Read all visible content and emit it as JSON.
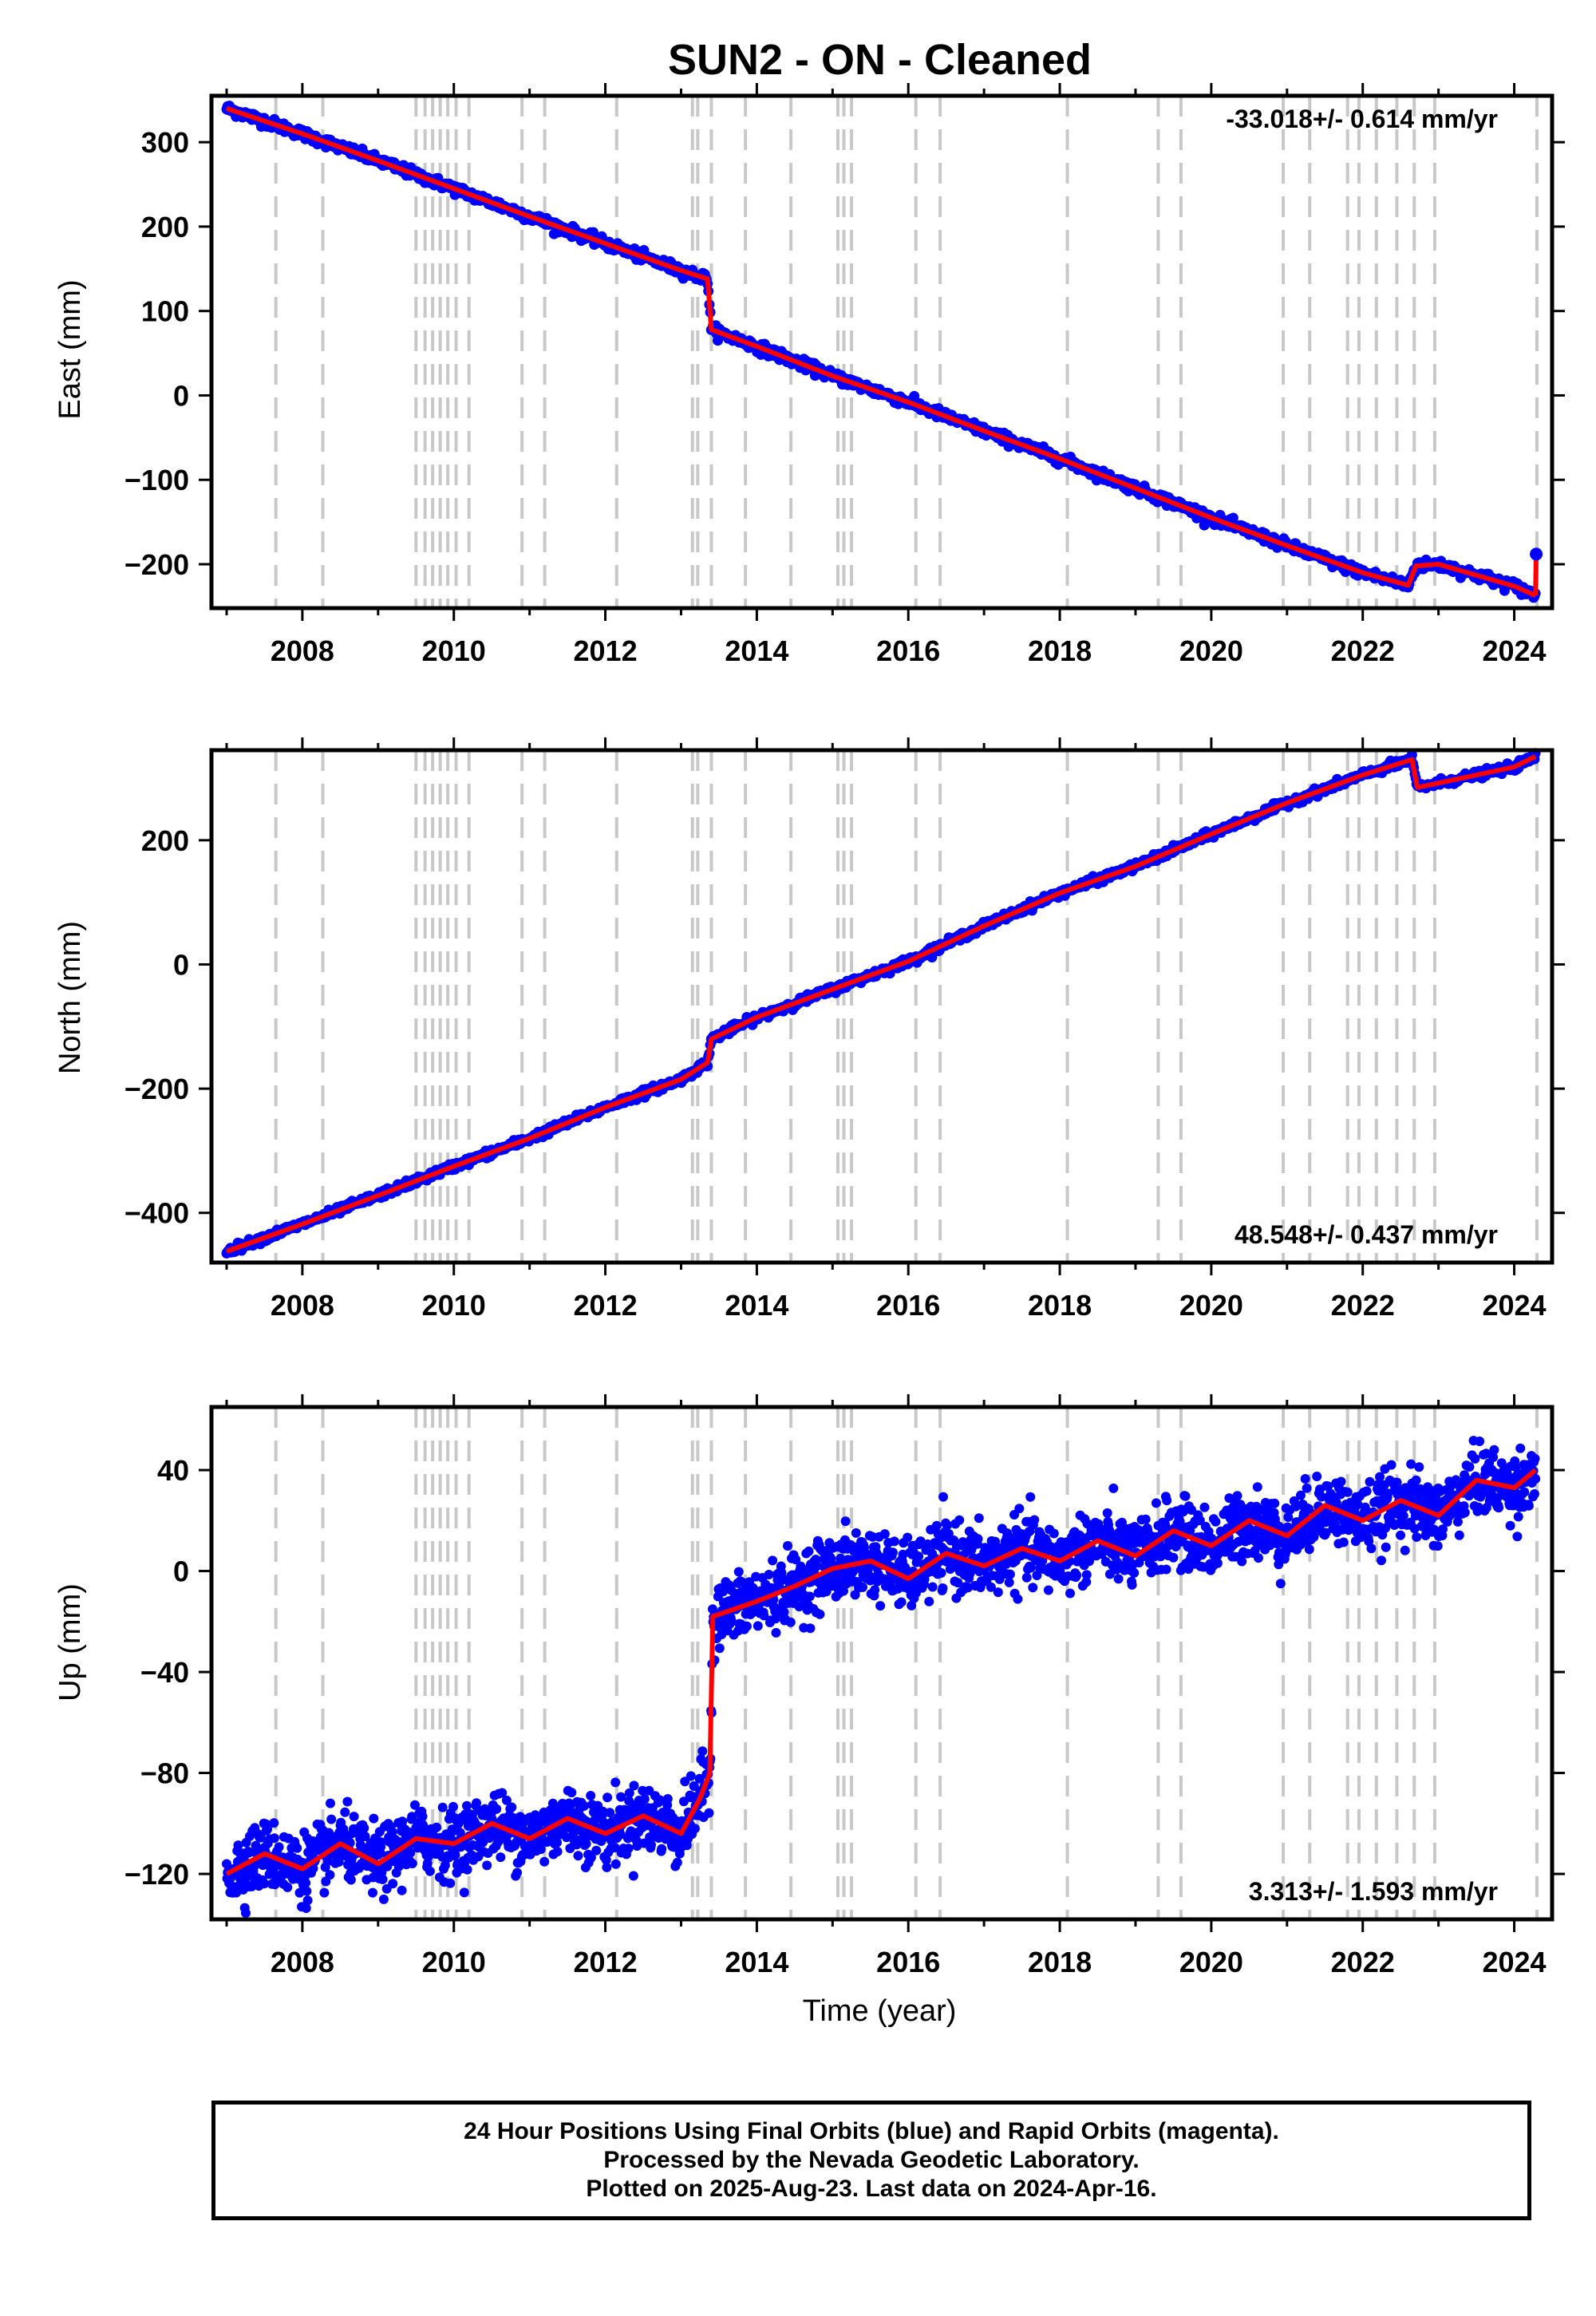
{
  "title": "SUN2  - ON - Cleaned",
  "colors": {
    "final_orbits": "#0000ff",
    "model_fit": "#ff0000",
    "event_lines": "#c8c8c8"
  },
  "footer": {
    "line1": "24 Hour Positions Using Final Orbits (blue) and Rapid Orbits (magenta).",
    "line2": "Processed by the Nevada Geodetic Laboratory.",
    "line3": "Plotted on 2025-Aug-23. Last data on 2024-Apr-16."
  },
  "chart_data": [
    {
      "type": "scatter",
      "name": "east",
      "ylabel": "East (mm)",
      "xlabel": "",
      "xlim": [
        2006.8,
        2024.5
      ],
      "ylim": [
        -252,
        355
      ],
      "xticks": [
        2008,
        2010,
        2012,
        2014,
        2016,
        2018,
        2020,
        2022,
        2024
      ],
      "yticks": [
        -200,
        -100,
        0,
        100,
        200,
        300
      ],
      "rate_label": "-33.018+/- 0.614 mm/yr",
      "rate_position": "top-right",
      "series": [
        {
          "name": "",
          "x": [
            2007.0,
            2008.0,
            2009.0,
            2010.0,
            2011.0,
            2012.0,
            2013.0,
            2013.35,
            2013.4,
            2014.0,
            2015.0,
            2016.0,
            2017.0,
            2018.0,
            2019.0,
            2020.0,
            2021.0,
            2022.0,
            2022.6,
            2022.7,
            2023.0,
            2024.0,
            2024.28
          ],
          "y": [
            340,
            310,
            278,
            245,
            212,
            180,
            148,
            138,
            78,
            58,
            23,
            -8,
            -42,
            -75,
            -110,
            -145,
            -178,
            -210,
            -225,
            -202,
            -200,
            -226,
            -237
          ]
        }
      ],
      "step_points": {
        "x": [
          2024.28,
          2024.29
        ],
        "y": [
          -237,
          -188
        ]
      }
    },
    {
      "type": "scatter",
      "name": "north",
      "ylabel": "North (mm)",
      "xlabel": "",
      "xlim": [
        2006.8,
        2024.5
      ],
      "ylim": [
        -480,
        345
      ],
      "xticks": [
        2008,
        2010,
        2012,
        2014,
        2016,
        2018,
        2020,
        2022,
        2024
      ],
      "yticks": [
        -400,
        -200,
        0,
        200
      ],
      "rate_label": "48.548+/- 0.437 mm/yr",
      "rate_position": "bottom-right",
      "series": [
        {
          "name": "",
          "x": [
            2007.0,
            2008.0,
            2009.0,
            2010.0,
            2011.0,
            2012.0,
            2013.0,
            2013.35,
            2013.4,
            2014.0,
            2015.0,
            2016.0,
            2017.0,
            2018.0,
            2019.0,
            2020.0,
            2021.0,
            2022.0,
            2022.65,
            2022.72,
            2023.0,
            2024.0,
            2024.28
          ],
          "y": [
            -462,
            -418,
            -372,
            -325,
            -280,
            -230,
            -185,
            -158,
            -120,
            -85,
            -40,
            5,
            62,
            115,
            158,
            210,
            260,
            305,
            330,
            285,
            292,
            318,
            335
          ]
        }
      ]
    },
    {
      "type": "scatter",
      "name": "up",
      "ylabel": "Up (mm)",
      "xlabel": "Time (year)",
      "xlim": [
        2006.8,
        2024.5
      ],
      "ylim": [
        -138,
        65
      ],
      "xticks": [
        2008,
        2010,
        2012,
        2014,
        2016,
        2018,
        2020,
        2022,
        2024
      ],
      "yticks": [
        -120,
        -80,
        -40,
        0,
        40
      ],
      "rate_label": "3.313+/- 1.593 mm/yr",
      "rate_position": "bottom-right",
      "series": [
        {
          "name": "",
          "x": [
            2007.0,
            2007.5,
            2008.0,
            2008.5,
            2009.0,
            2009.5,
            2010.0,
            2010.5,
            2011.0,
            2011.5,
            2012.0,
            2012.5,
            2013.0,
            2013.25,
            2013.38,
            2013.42,
            2014.0,
            2014.5,
            2015.0,
            2015.5,
            2016.0,
            2016.5,
            2017.0,
            2017.5,
            2018.0,
            2018.5,
            2019.0,
            2019.5,
            2020.0,
            2020.5,
            2021.0,
            2021.5,
            2022.0,
            2022.5,
            2023.0,
            2023.5,
            2024.0,
            2024.28
          ],
          "y": [
            -120,
            -112,
            -118,
            -108,
            -116,
            -106,
            -108,
            -100,
            -106,
            -98,
            -104,
            -97,
            -104,
            -90,
            -80,
            -18,
            -12,
            -6,
            1,
            4,
            -3,
            7,
            2,
            9,
            4,
            12,
            6,
            16,
            10,
            20,
            14,
            26,
            20,
            28,
            22,
            36,
            33,
            40
          ]
        }
      ]
    }
  ],
  "event_lines_x": [
    2007.65,
    2008.27,
    2009.5,
    2009.62,
    2009.72,
    2009.82,
    2009.92,
    2010.03,
    2010.2,
    2010.9,
    2011.2,
    2012.15,
    2013.15,
    2013.22,
    2013.4,
    2013.85,
    2014.45,
    2015.07,
    2015.15,
    2015.25,
    2016.1,
    2016.42,
    2018.1,
    2019.3,
    2019.6,
    2020.95,
    2021.3,
    2021.8,
    2021.95,
    2022.18,
    2022.45,
    2022.68,
    2022.95,
    2024.3
  ]
}
